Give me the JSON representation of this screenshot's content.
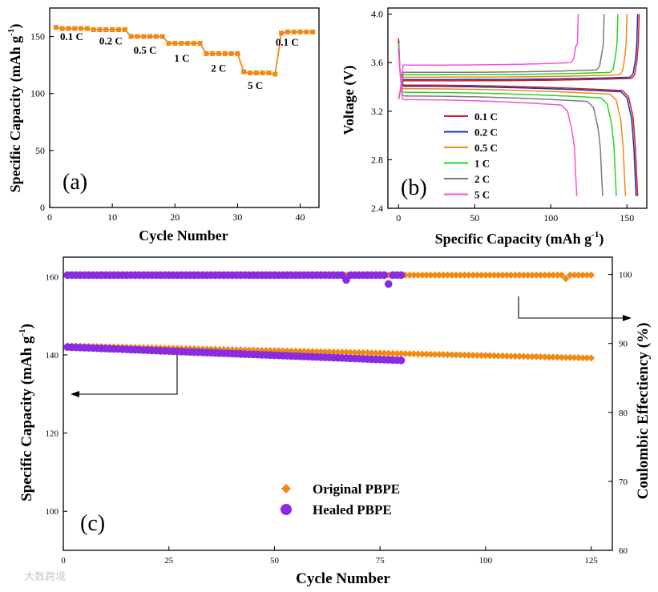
{
  "watermark": "大数跨境",
  "chart_data": [
    {
      "panel": "(a)",
      "type": "line",
      "xlabel": "Cycle Number",
      "ylabel": "Specific Capacity (mAh g",
      "ylabel_sup": "-1",
      "ylabel_tail": ")",
      "xlim": [
        0,
        43
      ],
      "ylim": [
        0,
        175
      ],
      "xticks": [
        0,
        10,
        20,
        30,
        40
      ],
      "yticks": [
        0,
        50,
        100,
        150
      ],
      "color": "#f08a14",
      "marker": "square",
      "x": [
        1,
        2,
        3,
        4,
        5,
        6,
        7,
        8,
        9,
        10,
        11,
        12,
        13,
        14,
        15,
        16,
        17,
        18,
        19,
        20,
        21,
        22,
        23,
        24,
        25,
        26,
        27,
        28,
        29,
        30,
        31,
        32,
        33,
        34,
        35,
        36,
        37,
        38,
        39,
        40,
        41,
        42
      ],
      "values": [
        158,
        157,
        157,
        157,
        157,
        157,
        156,
        156,
        156,
        156,
        156,
        156,
        150,
        150,
        150,
        150,
        150,
        150,
        144,
        144,
        144,
        144,
        144,
        144,
        135,
        135,
        135,
        135,
        135,
        135,
        119,
        118,
        118,
        118,
        118,
        117,
        153,
        154,
        154,
        154,
        154,
        154
      ],
      "annotations": [
        {
          "text": "0.1 C",
          "x": 4.5,
          "y": 147
        },
        {
          "text": "0.2 C",
          "x": 12.5,
          "y": 143
        },
        {
          "text": "0.5 C",
          "x": 19.5,
          "y": 135
        },
        {
          "text": "1 C",
          "x": 27,
          "y": 128
        },
        {
          "text": "2 C",
          "x": 34.5,
          "y": 119
        },
        {
          "text": "5 C",
          "x": 42,
          "y": 104
        },
        {
          "text": "0.1 C",
          "x": 48.5,
          "y": 142
        }
      ]
    },
    {
      "panel": "(b)",
      "type": "line",
      "xlabel": "Specific Capacity (mAh g",
      "xlabel_sup": "-1",
      "xlabel_tail": ")",
      "ylabel": "Voltage (V)",
      "xlim": [
        -7,
        163
      ],
      "ylim": [
        2.4,
        4.05
      ],
      "xticks": [
        0,
        50,
        100,
        150
      ],
      "yticks": [
        2.4,
        2.8,
        3.2,
        3.6,
        4.0
      ],
      "ytick_labels": [
        "2.4",
        "2.8",
        "3.2",
        "3.6",
        "4.0"
      ],
      "series": [
        {
          "name": "0.1 C",
          "color": "#d81b1b",
          "charge_plateau": 3.46,
          "discharge_plateau": 3.4,
          "charge_capacity": 158,
          "discharge_capacity": 157
        },
        {
          "name": "0.2 C",
          "color": "#1f2fb0",
          "charge_plateau": 3.47,
          "discharge_plateau": 3.39,
          "charge_capacity": 157,
          "discharge_capacity": 156
        },
        {
          "name": "0.5 C",
          "color": "#f08a14",
          "charge_plateau": 3.49,
          "discharge_plateau": 3.37,
          "charge_capacity": 150,
          "discharge_capacity": 149
        },
        {
          "name": "1 C",
          "color": "#2bd12b",
          "charge_plateau": 3.51,
          "discharge_plateau": 3.34,
          "charge_capacity": 144,
          "discharge_capacity": 143
        },
        {
          "name": "2 C",
          "color": "#7a7a7a",
          "charge_plateau": 3.53,
          "discharge_plateau": 3.31,
          "charge_capacity": 135,
          "discharge_capacity": 134
        },
        {
          "name": "5 C",
          "color": "#ff4fd8",
          "charge_plateau": 3.59,
          "discharge_plateau": 3.28,
          "charge_capacity": 118,
          "discharge_capacity": 117
        }
      ]
    },
    {
      "panel": "(c)",
      "type": "scatter",
      "xlabel": "Cycle Number",
      "ylabel": "Specific Capacity (mAh g",
      "ylabel_sup": "-1",
      "ylabel_tail": ")",
      "y2label": "Coulombic Effectiency (%)",
      "xlim": [
        0,
        130
      ],
      "ylim": [
        90,
        165
      ],
      "y2lim": [
        60,
        102.5
      ],
      "xticks": [
        0,
        25,
        50,
        75,
        100,
        125
      ],
      "yticks": [
        100,
        120,
        140,
        160
      ],
      "y2ticks": [
        60,
        70,
        80,
        90,
        100
      ],
      "series": [
        {
          "name": "Original PBPE",
          "color": "#f08a14",
          "marker": "diamond",
          "cycles": 125,
          "capacity_start": 142.3,
          "capacity_end": 139.2,
          "efficiency": 99.9,
          "efficiency_dip": {
            "cycle": 119,
            "value": 99.4
          }
        },
        {
          "name": "Healed PBPE",
          "color": "#8a2be2",
          "marker": "circle",
          "cycles": 80,
          "capacity_start": 142.0,
          "capacity_end": 138.6,
          "efficiency": 99.9,
          "efficiency_dips": [
            {
              "cycle": 67,
              "value": 99.2
            },
            {
              "cycle": 77,
              "value": 98.6
            }
          ]
        }
      ]
    }
  ]
}
